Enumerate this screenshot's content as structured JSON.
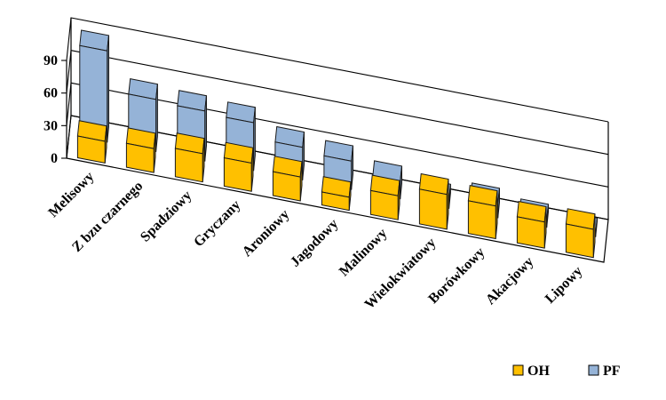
{
  "chart_data": {
    "type": "bar",
    "style": "3d-grouped",
    "categories": [
      "Melisowy",
      "Z bzu czarnego",
      "Spadziowy",
      "Gryczany",
      "Aroniowy",
      "Jagodowy",
      "Malinowy",
      "Wielokwiatowy",
      "Borówkowy",
      "Akacjowy",
      "Lipowy"
    ],
    "series": [
      {
        "name": "OH",
        "values": [
          20,
          22,
          26,
          26,
          22,
          12,
          22,
          32,
          30,
          24,
          26
        ],
        "color": "#FFC000"
      },
      {
        "name": "PF",
        "values": [
          84,
          48,
          46,
          44,
          30,
          26,
          16,
          8,
          13,
          7,
          3
        ],
        "color": "#95B3D7"
      }
    ],
    "ylim": [
      0,
      90
    ],
    "yticks": [
      0,
      30,
      60,
      90
    ],
    "grid": true,
    "legend": "bottom-right",
    "title": "",
    "xlabel": "",
    "ylabel": ""
  }
}
